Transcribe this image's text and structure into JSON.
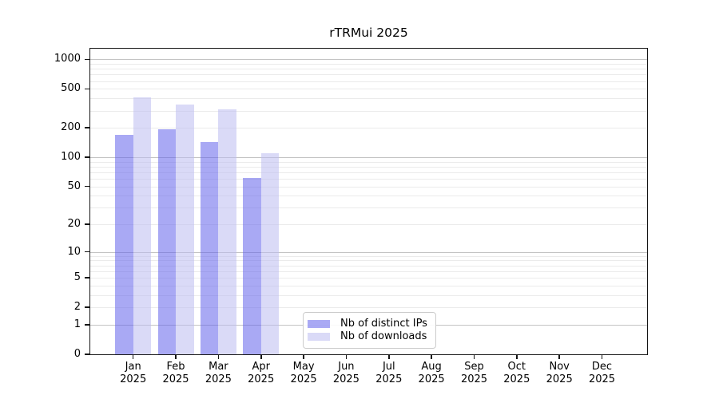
{
  "title": "rTRMui 2025",
  "chart_data": {
    "type": "bar",
    "title": "rTRMui 2025",
    "categories": [
      {
        "month": "Jan",
        "year": "2025"
      },
      {
        "month": "Feb",
        "year": "2025"
      },
      {
        "month": "Mar",
        "year": "2025"
      },
      {
        "month": "Apr",
        "year": "2025"
      },
      {
        "month": "May",
        "year": "2025"
      },
      {
        "month": "Jun",
        "year": "2025"
      },
      {
        "month": "Jul",
        "year": "2025"
      },
      {
        "month": "Aug",
        "year": "2025"
      },
      {
        "month": "Sep",
        "year": "2025"
      },
      {
        "month": "Oct",
        "year": "2025"
      },
      {
        "month": "Nov",
        "year": "2025"
      },
      {
        "month": "Dec",
        "year": "2025"
      }
    ],
    "series": [
      {
        "name": "Nb of distinct IPs",
        "color": "#6363eb",
        "alpha": 0.55,
        "values": [
          170,
          192,
          143,
          61,
          0,
          0,
          0,
          0,
          0,
          0,
          0,
          0
        ]
      },
      {
        "name": "Nb of downloads",
        "color": "#bcbcf0",
        "alpha": 0.55,
        "values": [
          413,
          343,
          310,
          110,
          0,
          0,
          0,
          0,
          0,
          0,
          0,
          0
        ]
      }
    ],
    "y_ticks": [
      0,
      1,
      2,
      5,
      10,
      20,
      50,
      100,
      200,
      500,
      1000
    ],
    "y_scale": "log10(1+y)",
    "ylim": [
      0,
      1280
    ],
    "xlabel": "",
    "ylabel": "",
    "grid": {
      "orientation": "horizontal",
      "major_values": [
        1,
        10,
        100,
        1000
      ],
      "minor_mantissas": [
        2,
        3,
        4,
        5,
        6,
        7,
        8,
        9
      ],
      "minor_decades": [
        1,
        10,
        100
      ],
      "major_color": "#c3c3c3",
      "minor_color": "#ebebeb"
    },
    "legend": {
      "position": "bottom-center-inside",
      "border_color": "#cccccc"
    },
    "spine_color": "#141414"
  }
}
